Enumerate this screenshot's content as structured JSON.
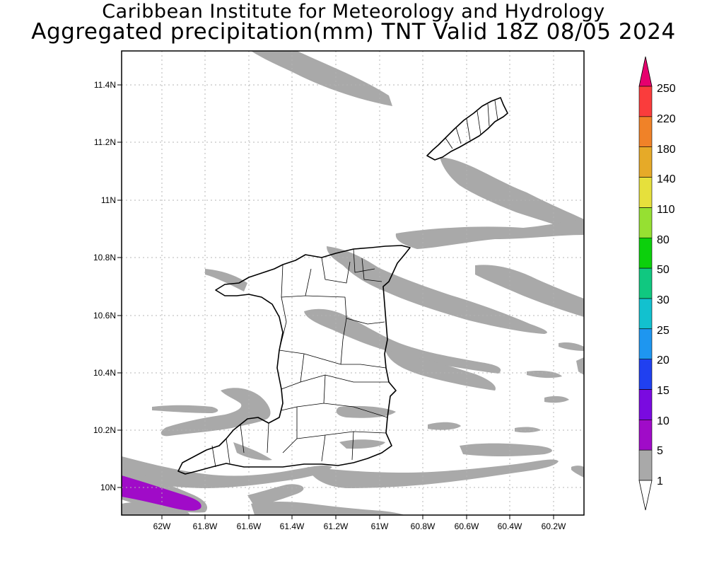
{
  "title": {
    "line1": "Caribbean Institute for Meteorology and Hydrology",
    "line2": "Aggregated precipitation(mm) TNT Valid 18Z 08/05 2024"
  },
  "axes": {
    "lat_labels": [
      "11.4N",
      "11.2N",
      "11N",
      "10.8N",
      "10.6N",
      "10.4N",
      "10.2N",
      "10N"
    ],
    "lon_labels": [
      "62W",
      "61.8W",
      "61.6W",
      "61.4W",
      "61.2W",
      "61W",
      "60.8W",
      "60.6W",
      "60.4W",
      "60.2W"
    ]
  },
  "legend": {
    "levels": [
      "1",
      "5",
      "10",
      "15",
      "20",
      "25",
      "30",
      "50",
      "80",
      "110",
      "140",
      "180",
      "220",
      "250"
    ],
    "colors": [
      "#a9a9a9",
      "#a00bc8",
      "#7a0ae0",
      "#2040f0",
      "#1e96f0",
      "#12c1cf",
      "#10c880",
      "#0cd00c",
      "#96e032",
      "#e6e03c",
      "#e6aa28",
      "#f08228",
      "#fa3c3c",
      "#e6006e"
    ],
    "above_color": "#e6006e",
    "below_color": "#ffffff"
  },
  "map": {
    "colors": {
      "rain_light": "#a9a9a9",
      "rain_5_10": "#a00bc8",
      "coast": "#000000",
      "grid": "#b4b4b4"
    }
  }
}
